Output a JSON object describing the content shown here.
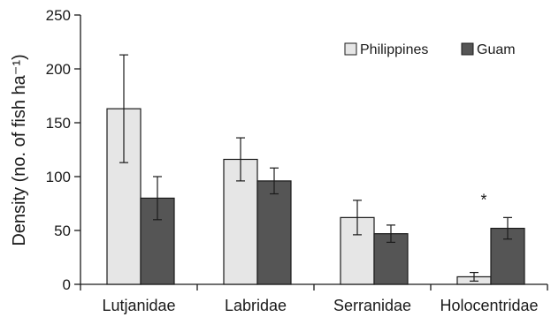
{
  "chart_data": {
    "type": "bar",
    "categories": [
      "Lutjanidae",
      "Labridae",
      "Serranidae",
      "Holocentridae"
    ],
    "series": [
      {
        "name": "Philippines",
        "color": "#e6e6e6",
        "values": [
          163,
          116,
          62,
          7
        ],
        "errors": [
          50,
          20,
          16,
          4
        ]
      },
      {
        "name": "Guam",
        "color": "#555555",
        "values": [
          80,
          96,
          47,
          52
        ],
        "errors": [
          20,
          12,
          8,
          10
        ]
      }
    ],
    "ylabel": "Density (no. of fish ha⁻¹)",
    "xlabel": "",
    "ylim": [
      0,
      250
    ],
    "yticks": [
      0,
      50,
      100,
      150,
      200,
      250
    ],
    "grid": false,
    "legend_position": "top-right",
    "annotations": [
      {
        "category": "Holocentridae",
        "series": "Guam",
        "text": "*"
      }
    ]
  }
}
